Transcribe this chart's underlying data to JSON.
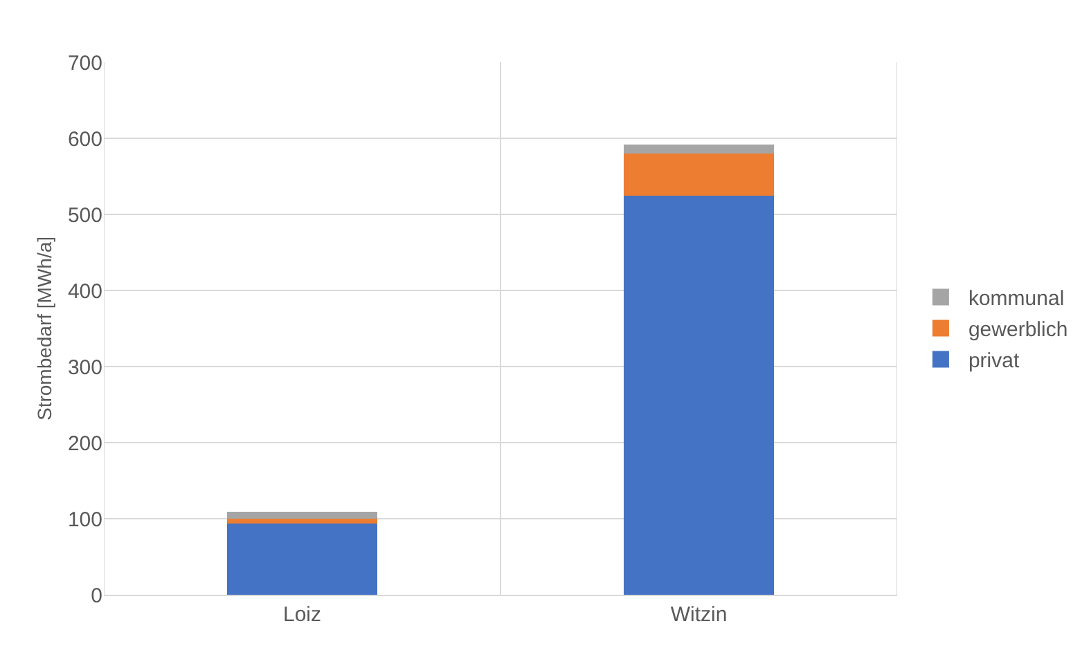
{
  "chart_data": {
    "type": "bar",
    "stacked": true,
    "ylabel": "Strombedarf [MWh/a]",
    "categories": [
      "Loiz",
      "Witzin"
    ],
    "series": [
      {
        "name": "privat",
        "color": "#4472c4",
        "values": [
          94,
          525
        ]
      },
      {
        "name": "gewerblich",
        "color": "#ed7d31",
        "values": [
          6,
          55
        ]
      },
      {
        "name": "kommunal",
        "color": "#a5a5a5",
        "values": [
          9,
          12
        ]
      }
    ],
    "ylim": [
      0,
      700
    ],
    "yticks": [
      0,
      100,
      200,
      300,
      400,
      500,
      600,
      700
    ],
    "grid": true,
    "legend": "right"
  }
}
